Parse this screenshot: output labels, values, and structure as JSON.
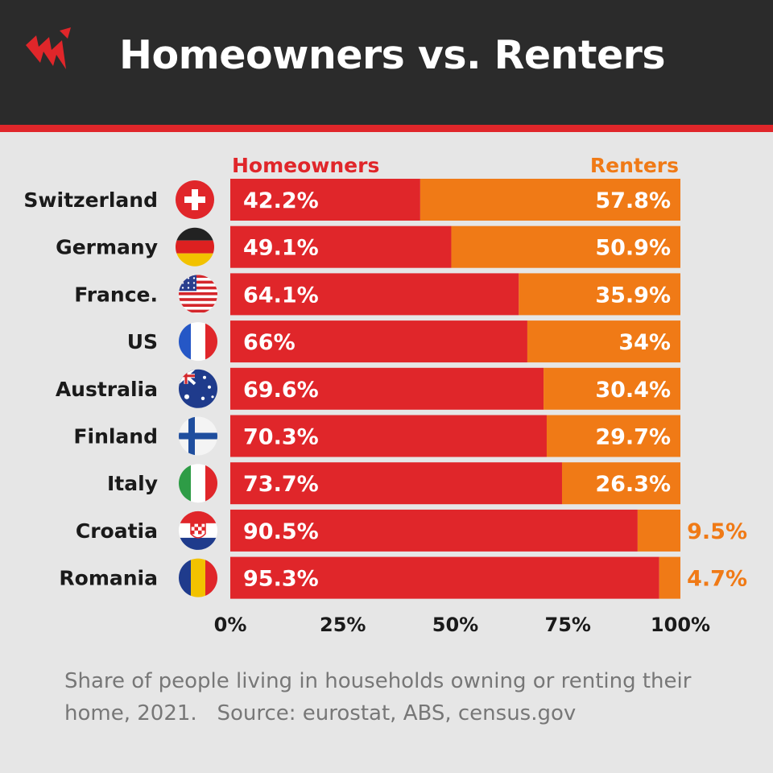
{
  "header": {
    "title": "Homeowners vs. Renters",
    "logo_icon": "sbs-logo-icon"
  },
  "colors": {
    "homeowners": "#e0262a",
    "renters": "#f07a16",
    "header_bg": "#2b2b2b",
    "background": "#e6e6e6"
  },
  "chart_data": {
    "type": "bar",
    "orientation": "horizontal",
    "stacked": true,
    "categories": [
      "Switzerland",
      "Germany",
      "France.",
      "US",
      "Australia",
      "Finland",
      "Italy",
      "Croatia",
      "Romania"
    ],
    "flags": [
      "flag-switzerland-icon",
      "flag-germany-icon",
      "flag-usa-icon",
      "flag-france-icon",
      "flag-australia-icon",
      "flag-finland-icon",
      "flag-italy-icon",
      "flag-croatia-icon",
      "flag-romania-icon"
    ],
    "series": [
      {
        "name": "Homeowners",
        "values": [
          42.2,
          49.1,
          64.1,
          66,
          69.6,
          70.3,
          73.7,
          90.5,
          95.3
        ],
        "labels": [
          "42.2%",
          "49.1%",
          "64.1%",
          "66%",
          "69.6%",
          "70.3%",
          "73.7%",
          "90.5%",
          "95.3%"
        ]
      },
      {
        "name": "Renters",
        "values": [
          57.8,
          50.9,
          35.9,
          34,
          30.4,
          29.7,
          26.3,
          9.5,
          4.7
        ],
        "labels": [
          "57.8%",
          "50.9%",
          "35.9%",
          "34%",
          "30.4%",
          "29.7%",
          "26.3%",
          "9.5%",
          "4.7%"
        ]
      }
    ],
    "xlim": [
      0,
      100
    ],
    "xticks": [
      "0%",
      "25%",
      "50%",
      "75%",
      "100%"
    ],
    "legend": "top"
  },
  "footnote": {
    "line1": "Share of people living in households owning or renting their",
    "line2": "home, 2021.",
    "source": "Source: eurostat, ABS, census.gov"
  }
}
